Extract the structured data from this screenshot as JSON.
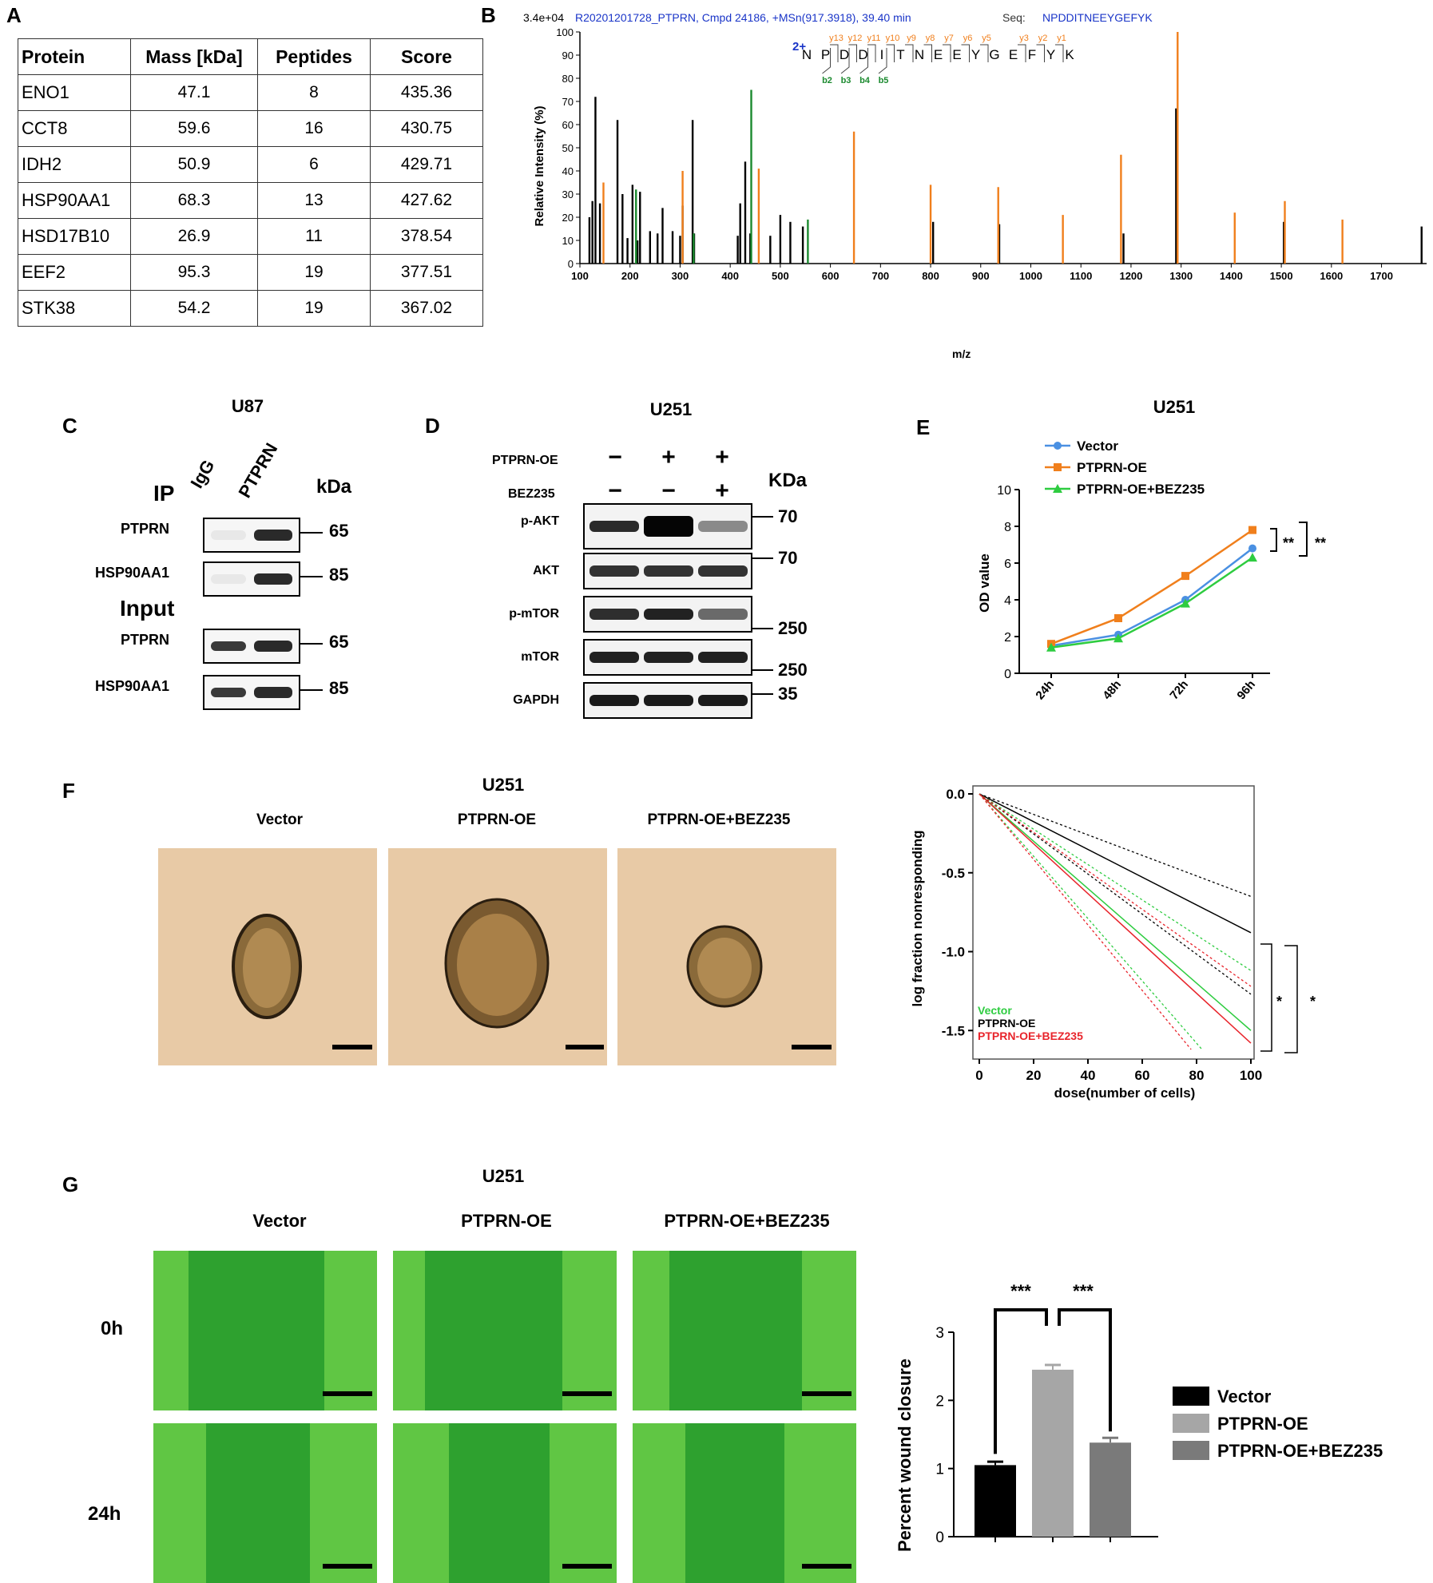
{
  "panel_labels": {
    "a": "A",
    "b": "B",
    "c": "C",
    "d": "D",
    "e": "E",
    "f": "F",
    "g": "G"
  },
  "table_a": {
    "headers": [
      "Protein",
      "Mass [kDa]",
      "Peptides",
      "Score"
    ],
    "rows": [
      [
        "ENO1",
        "47.1",
        "8",
        "435.36"
      ],
      [
        "CCT8",
        "59.6",
        "16",
        "430.75"
      ],
      [
        "IDH2",
        "50.9",
        "6",
        "429.71"
      ],
      [
        "HSP90AA1",
        "68.3",
        "13",
        "427.62"
      ],
      [
        "HSD17B10",
        "26.9",
        "11",
        "378.54"
      ],
      [
        "EEF2",
        "95.3",
        "19",
        "377.51"
      ],
      [
        "STK38",
        "54.2",
        "19",
        "367.02"
      ]
    ]
  },
  "spectrum_b": {
    "scale_label": "3.4e+04",
    "header": "R20201201728_PTPRN, Cmpd 24186, +MSn(917.3918), 39.40 min",
    "seq_label": "Seq:",
    "seq": "NPDDITNEEYGEFYK",
    "charge": "2+",
    "residues": [
      "N",
      "P",
      "D",
      "D",
      "I",
      "T",
      "N",
      "E",
      "E",
      "Y",
      "G",
      "E",
      "F",
      "Y",
      "K"
    ],
    "y_ions": [
      "y13",
      "y12",
      "y11",
      "y10",
      "y9",
      "y8",
      "y7",
      "y6",
      "y5",
      "y3",
      "y2",
      "y1"
    ],
    "b_ions": [
      "b2",
      "b3",
      "b4",
      "b5"
    ],
    "ylabel": "Relative  Intensity (%)",
    "xlabel": "m/z",
    "y_ticks": [
      "0",
      "10",
      "20",
      "30",
      "40",
      "50",
      "60",
      "70",
      "80",
      "90",
      "100"
    ],
    "x_ticks": [
      "100",
      "200",
      "300",
      "400",
      "500",
      "600",
      "700",
      "800",
      "900",
      "1000",
      "1100",
      "1200",
      "1300",
      "1400",
      "1500",
      "1600",
      "1700"
    ]
  },
  "chart_data": [
    {
      "type": "bar",
      "id": "B-spectrum",
      "xlabel": "m/z",
      "ylabel": "Relative  Intensity (%)",
      "xlim": [
        100,
        1790
      ],
      "ylim": [
        0,
        100
      ],
      "series": [
        {
          "name": "unassigned",
          "x": [
            119,
            125,
            131,
            140,
            175,
            185,
            195,
            205,
            215,
            220,
            240,
            255,
            265,
            285,
            300,
            305,
            325,
            328,
            415,
            420,
            430,
            440,
            480,
            500,
            520,
            545,
            805,
            937,
            1185,
            1290,
            1505,
            1780
          ],
          "values": [
            20,
            27,
            72,
            26,
            62,
            30,
            11,
            34,
            10,
            31,
            14,
            13,
            24,
            14,
            12,
            25,
            62,
            13,
            12,
            26,
            44,
            13,
            12,
            21,
            18,
            16,
            18,
            17,
            13,
            67,
            18,
            16
          ]
        },
        {
          "name": "y-ions",
          "x": [
            147,
            305,
            457,
            647,
            800,
            935,
            1064,
            1180,
            1293,
            1407,
            1507,
            1622
          ],
          "values": [
            35,
            40,
            41,
            57,
            34,
            33,
            21,
            47,
            100,
            22,
            27,
            19
          ]
        },
        {
          "name": "b-ions",
          "x": [
            212,
            327,
            442,
            555
          ],
          "values": [
            32,
            13,
            75,
            19
          ]
        }
      ]
    },
    {
      "type": "line",
      "id": "E",
      "title": "U251",
      "xlabel": "",
      "ylabel": "OD value",
      "categories": [
        "24h",
        "48h",
        "72h",
        "96h"
      ],
      "ylim": [
        0,
        10
      ],
      "y_ticks": [
        "0",
        "2",
        "4",
        "6",
        "8",
        "10"
      ],
      "series": [
        {
          "name": "Vector",
          "color": "#4a90e2",
          "values": [
            1.5,
            2.1,
            4.0,
            6.8
          ]
        },
        {
          "name": "PTPRN-OE",
          "color": "#f07f1c",
          "values": [
            1.6,
            3.0,
            5.3,
            7.8
          ]
        },
        {
          "name": "PTPRN-OE+BEZ235",
          "color": "#2ecc40",
          "values": [
            1.4,
            1.9,
            3.8,
            6.3
          ]
        }
      ],
      "annotations": [
        "**",
        "**"
      ]
    },
    {
      "type": "line",
      "id": "F-ELDA",
      "xlabel": "dose(number of cells)",
      "ylabel": "log fraction nonresponding",
      "xlim": [
        0,
        100
      ],
      "ylim": [
        -1.6,
        0.05
      ],
      "x_ticks": [
        "0",
        "20",
        "40",
        "60",
        "80",
        "100"
      ],
      "y_ticks": [
        "0.0",
        "-0.5",
        "-1.0",
        "-1.5"
      ],
      "series": [
        {
          "name": "Vector",
          "color": "#2ecc40",
          "x": [
            0,
            100
          ],
          "values": [
            0,
            -1.5
          ]
        },
        {
          "name": "PTPRN-OE",
          "color": "#000000",
          "x": [
            0,
            100
          ],
          "values": [
            0,
            -0.88
          ]
        },
        {
          "name": "PTPRN-OE+BEZ235",
          "color": "#e8242b",
          "x": [
            0,
            100
          ],
          "values": [
            0,
            -1.58
          ]
        }
      ],
      "annotations": [
        "*",
        "*"
      ]
    },
    {
      "type": "bar",
      "id": "G-bars",
      "xlabel": "",
      "ylabel": "Percent wound closure",
      "categories": [
        "Vector",
        "PTPRN-OE",
        "PTPRN-OE+BEZ235"
      ],
      "values": [
        1.05,
        2.45,
        1.38
      ],
      "errors": [
        0.05,
        0.07,
        0.07
      ],
      "colors": [
        "#000000",
        "#a6a6a6",
        "#7a7a7a"
      ],
      "ylim": [
        0,
        3
      ],
      "y_ticks": [
        "0",
        "1",
        "2",
        "3"
      ],
      "annotations": [
        "***",
        "***"
      ]
    }
  ],
  "panel_c": {
    "title": "U87",
    "ip_label": "IP",
    "input_label": "Input",
    "lanes": [
      "IgG",
      "PTPRN"
    ],
    "unit": "kDa",
    "rows": [
      {
        "label": "PTPRN",
        "kda": "65"
      },
      {
        "label": "HSP90AA1",
        "kda": "85"
      },
      {
        "label": "PTPRN",
        "kda": "65"
      },
      {
        "label": "HSP90AA1",
        "kda": "85"
      }
    ]
  },
  "panel_d": {
    "title": "U251",
    "treat1": "PTPRN-OE",
    "treat2": "BEZ235",
    "treat1_signs": [
      "−",
      "+",
      "+"
    ],
    "treat2_signs": [
      "−",
      "−",
      "+"
    ],
    "unit": "KDa",
    "rows": [
      "p-AKT",
      "AKT",
      "p-mTOR",
      "mTOR",
      "GAPDH"
    ],
    "markers": [
      "70",
      "70",
      "250",
      "250",
      "35"
    ]
  },
  "panel_e": {
    "title": "U251",
    "legend": [
      "Vector",
      "PTPRN-OE",
      "PTPRN-OE+BEZ235"
    ],
    "stars": [
      "**",
      "**"
    ]
  },
  "panel_f": {
    "title": "U251",
    "columns": [
      "Vector",
      "PTPRN-OE",
      "PTPRN-OE+BEZ235"
    ],
    "legend": [
      "Vector",
      "PTPRN-OE",
      "PTPRN-OE+BEZ235"
    ],
    "stars": [
      "*",
      "*"
    ]
  },
  "panel_g": {
    "title": "U251",
    "columns": [
      "Vector",
      "PTPRN-OE",
      "PTPRN-OE+BEZ235"
    ],
    "rows": [
      "0h",
      "24h"
    ],
    "legend": [
      "Vector",
      "PTPRN-OE",
      "PTPRN-OE+BEZ235"
    ],
    "stars": [
      "***",
      "***"
    ]
  }
}
